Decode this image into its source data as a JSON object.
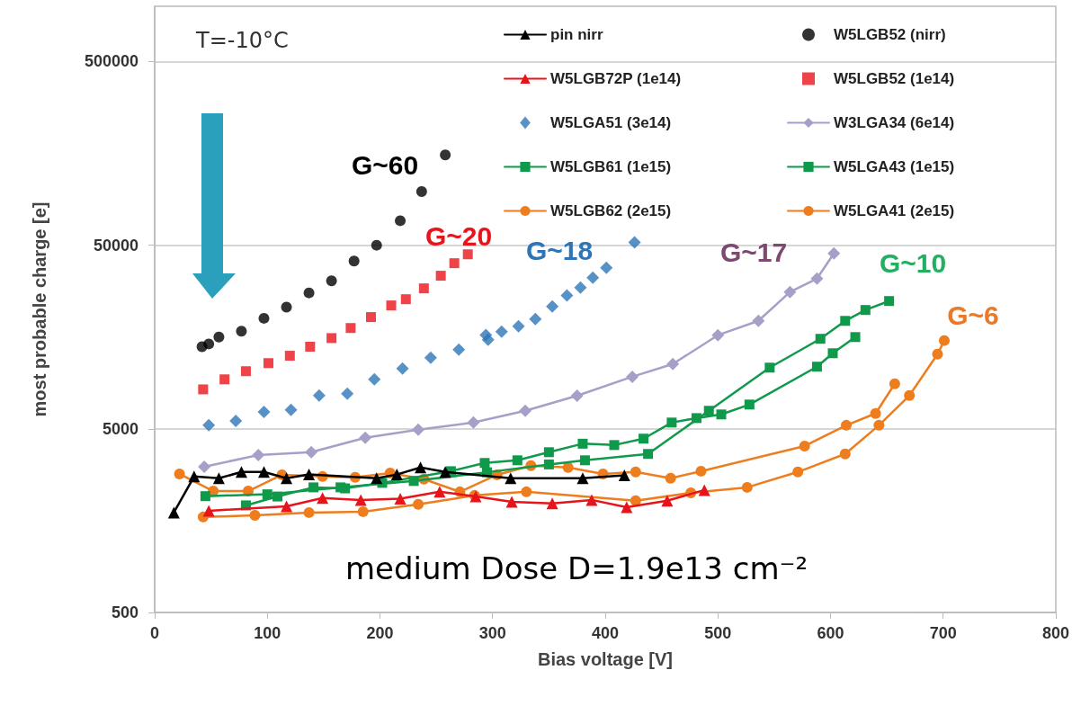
{
  "chart_data": {
    "type": "line",
    "xlabel": "Bias voltage [V]",
    "ylabel": "most probable charge [e]",
    "log": "y",
    "grid": "y",
    "legend": "top right",
    "xlim": [
      0,
      800
    ],
    "xticks": [
      0,
      100,
      200,
      300,
      400,
      500,
      600,
      700,
      800
    ],
    "ylim": [
      500,
      1000000
    ],
    "yticks": [
      500,
      5000,
      50000,
      500000
    ],
    "annotations": [
      "T=-10°C",
      "G~60",
      "G~20",
      "G~18",
      "G~17",
      "G~10",
      "G~6",
      "medium Dose D=1.9e13 cm⁻²"
    ],
    "series": [
      {
        "name": "pin nirr",
        "marker": "triangle",
        "color": "#000000",
        "x": [
          17,
          35,
          57,
          77,
          97,
          117,
          137,
          197,
          215,
          236,
          258,
          316,
          380,
          417
        ],
        "values": [
          1750,
          2750,
          2690,
          2910,
          2910,
          2690,
          2820,
          2690,
          2820,
          3080,
          2910,
          2690,
          2690,
          2790
        ]
      },
      {
        "name": "W5LGB52 (nirr)",
        "type": "scatter",
        "marker": "circle",
        "color": "#000000",
        "x": [
          42,
          48,
          57,
          77,
          97,
          117,
          137,
          157,
          177,
          197,
          218,
          237,
          258
        ],
        "values": [
          14000,
          14500,
          15800,
          17000,
          20000,
          23000,
          27500,
          32000,
          41000,
          50000,
          68000,
          98000,
          155000
        ]
      },
      {
        "name": "W5LGB72P (1e14)",
        "marker": "triangle",
        "color": "#e8141b",
        "x": [
          48,
          117,
          149,
          183,
          218,
          253,
          285,
          317,
          353,
          388,
          419,
          455,
          488
        ],
        "values": [
          1790,
          1890,
          2100,
          2050,
          2080,
          2270,
          2140,
          2000,
          1960,
          2050,
          1870,
          2030,
          2320
        ]
      },
      {
        "name": "W5LGB52 (1e14)",
        "type": "scatter",
        "marker": "square",
        "color": "#e8141b",
        "x": [
          43,
          62,
          81,
          101,
          120,
          138,
          157,
          174,
          192,
          210,
          223,
          239,
          254,
          266,
          278
        ],
        "values": [
          8200,
          9300,
          10300,
          11400,
          12500,
          14000,
          15600,
          17700,
          20300,
          23500,
          25400,
          29100,
          34100,
          39900,
          44600
        ]
      },
      {
        "name": "W5LGA51 (3e14)",
        "type": "scatter",
        "marker": "diamond",
        "color": "#2e75b6",
        "x": [
          48,
          72,
          97,
          121,
          146,
          171,
          195,
          220,
          245,
          270,
          294,
          296,
          308,
          323,
          338,
          353,
          366,
          378,
          389,
          401,
          426
        ],
        "values": [
          5230,
          5530,
          6190,
          6340,
          7590,
          7760,
          9300,
          10650,
          12200,
          13500,
          16200,
          15300,
          16900,
          18100,
          19800,
          23200,
          26600,
          29400,
          33300,
          37700,
          51800
        ]
      },
      {
        "name": "W3LGA34 (6e14)",
        "marker": "diamond",
        "color": "#a5a0c8",
        "x": [
          44,
          92,
          139,
          187,
          234,
          283,
          329,
          375,
          424,
          460,
          500,
          536,
          564,
          588,
          603
        ],
        "values": [
          3110,
          3600,
          3730,
          4470,
          4950,
          5410,
          6270,
          7570,
          9610,
          11270,
          16180,
          19360,
          27800,
          32900,
          45100
        ]
      },
      {
        "name": "W5LGB61 (1e15)",
        "marker": "square",
        "color": "#0f9a4b",
        "x": [
          81,
          109,
          141,
          169,
          202,
          263,
          293,
          322,
          350,
          380,
          408,
          434,
          459,
          481,
          503,
          528,
          588,
          602,
          622
        ],
        "values": [
          1915,
          2140,
          2400,
          2370,
          2540,
          2940,
          3260,
          3370,
          3730,
          4150,
          4080,
          4420,
          5410,
          5720,
          5990,
          6780,
          10900,
          12900,
          15800
        ]
      },
      {
        "name": "W5LGA43 (1e15)",
        "marker": "square",
        "color": "#0f9a4b",
        "x": [
          45,
          100,
          165,
          230,
          295,
          350,
          382,
          438,
          492,
          546,
          591,
          613,
          631,
          652
        ],
        "values": [
          2150,
          2200,
          2400,
          2600,
          2900,
          3200,
          3370,
          3650,
          6270,
          10770,
          15460,
          19360,
          22190,
          24830
        ]
      },
      {
        "name": "W5LGB62 (2e15)",
        "marker": "circle",
        "color": "#ee7d1e",
        "x": [
          22,
          52,
          83,
          113,
          149,
          178,
          209,
          239,
          271,
          304,
          334,
          367,
          398,
          427,
          458,
          485,
          577,
          614,
          640,
          657
        ],
        "values": [
          2840,
          2290,
          2290,
          2810,
          2750,
          2720,
          2870,
          2660,
          2270,
          2810,
          3150,
          3080,
          2840,
          2910,
          2690,
          2940,
          4030,
          5230,
          6060,
          8790
        ]
      },
      {
        "name": "W5LGA41 (2e15)",
        "marker": "circle",
        "color": "#ee7d1e",
        "x": [
          43,
          89,
          137,
          185,
          234,
          284,
          330,
          427,
          476,
          526,
          571,
          613,
          643,
          670,
          695,
          701
        ],
        "values": [
          1655,
          1690,
          1750,
          1770,
          1940,
          2170,
          2270,
          2030,
          2240,
          2400,
          2910,
          3650,
          5230,
          7590,
          12760,
          15130
        ]
      }
    ]
  }
}
